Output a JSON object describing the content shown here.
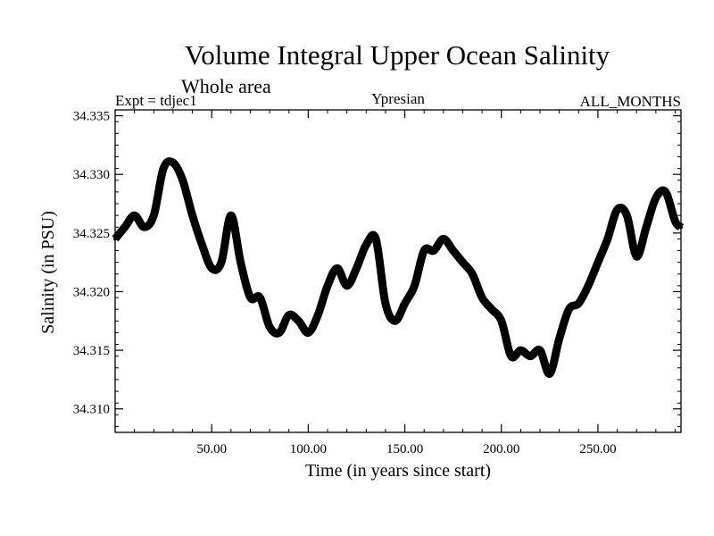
{
  "chart_data": {
    "type": "line",
    "title": "Volume Integral Upper Ocean Salinity",
    "subtitle": "Whole area",
    "annotations": {
      "left": "Expt = tdjec1",
      "center": "Ypresian",
      "right": "ALL_MONTHS"
    },
    "xlabel": "Time (in years since start)",
    "ylabel": "Salinity (in PSU)",
    "xlim": [
      0,
      293
    ],
    "ylim": [
      34.308,
      34.3355
    ],
    "xticks": [
      50,
      100,
      150,
      200,
      250
    ],
    "xtick_labels": [
      "50.00",
      "100.00",
      "150.00",
      "200.00",
      "250.00"
    ],
    "yticks": [
      34.31,
      34.315,
      34.32,
      34.325,
      34.33,
      34.335
    ],
    "ytick_labels": [
      "34.310",
      "34.315",
      "34.320",
      "34.325",
      "34.330",
      "34.335"
    ],
    "series": [
      {
        "name": "salinity",
        "color": "#000000",
        "x": [
          0,
          5,
          10,
          15,
          20,
          25,
          30,
          35,
          40,
          45,
          50,
          55,
          60,
          65,
          70,
          75,
          80,
          85,
          90,
          95,
          100,
          105,
          110,
          115,
          120,
          125,
          130,
          135,
          140,
          145,
          150,
          155,
          160,
          165,
          170,
          175,
          180,
          185,
          190,
          195,
          200,
          205,
          210,
          215,
          220,
          225,
          230,
          235,
          240,
          245,
          250,
          255,
          260,
          265,
          270,
          275,
          280,
          285,
          290,
          293
        ],
        "values": [
          34.3245,
          34.3255,
          34.3265,
          34.3255,
          34.3265,
          34.3305,
          34.331,
          34.3295,
          34.3265,
          34.324,
          34.322,
          34.3225,
          34.3265,
          34.3225,
          34.3195,
          34.3195,
          34.317,
          34.3165,
          34.318,
          34.3175,
          34.3165,
          34.318,
          34.3205,
          34.322,
          34.3205,
          34.322,
          34.324,
          34.3245,
          34.319,
          34.3175,
          34.319,
          34.3205,
          34.3235,
          34.3235,
          34.3245,
          34.3235,
          34.3225,
          34.3215,
          34.3195,
          34.3185,
          34.3175,
          34.3145,
          34.315,
          34.3145,
          34.315,
          34.313,
          34.316,
          34.3185,
          34.319,
          34.3205,
          34.3225,
          34.3245,
          34.327,
          34.3265,
          34.323,
          34.3255,
          34.328,
          34.3285,
          34.326,
          34.3255
        ]
      }
    ]
  }
}
